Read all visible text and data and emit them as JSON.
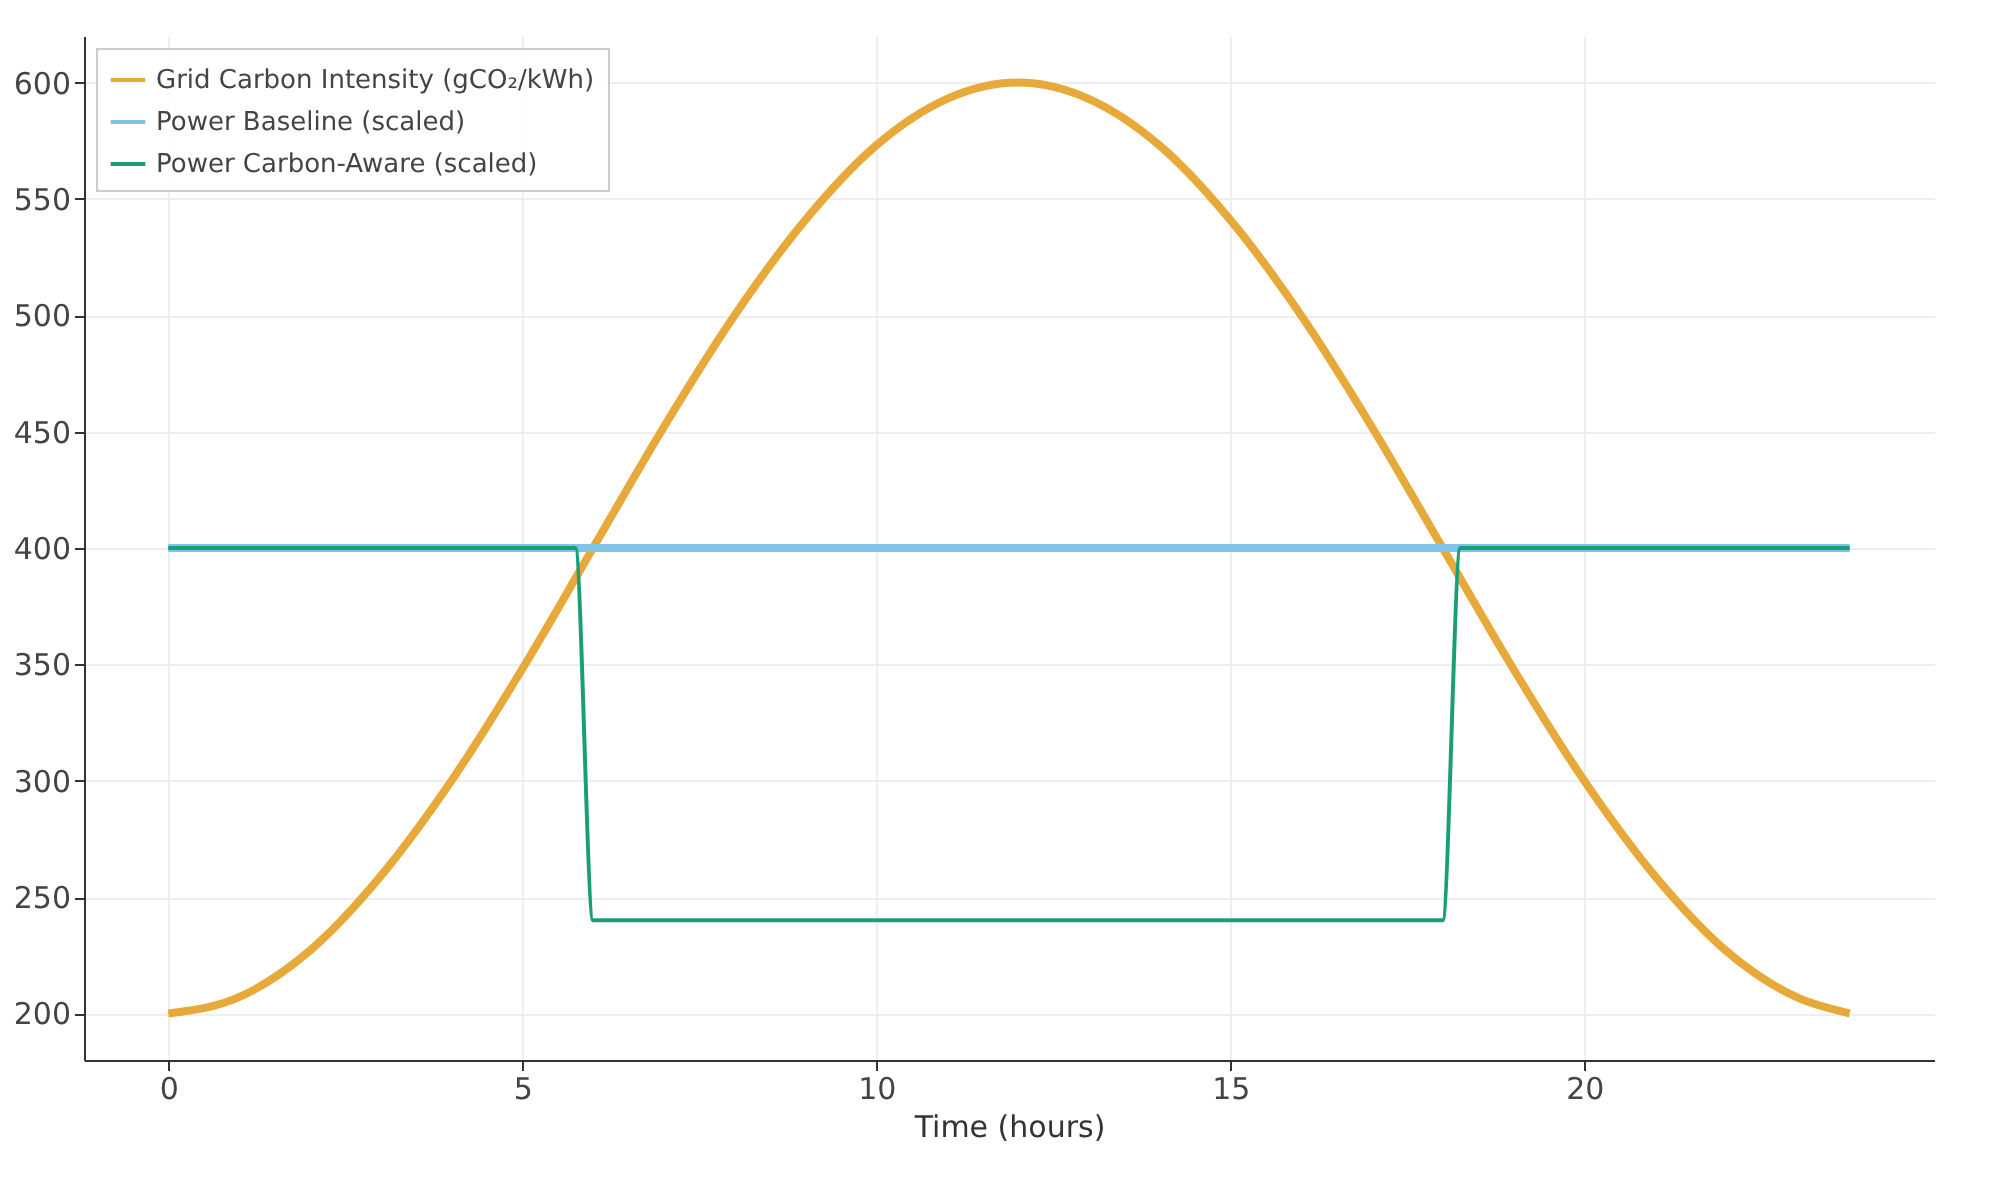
{
  "chart_data": {
    "type": "line",
    "xlabel": "Time (hours)",
    "xlim": [
      -1.19,
      24.94
    ],
    "ylim": [
      180,
      620
    ],
    "xticks": [
      0,
      5,
      10,
      15,
      20
    ],
    "yticks": [
      200,
      250,
      300,
      350,
      400,
      450,
      500,
      550,
      600
    ],
    "grid": true,
    "legend": "top left",
    "series": [
      {
        "name": "Grid Carbon Intensity (gCO₂/kWh)",
        "color": "#e6a93a",
        "x": [
          0,
          1,
          2,
          3,
          4,
          5,
          6,
          7,
          8,
          9,
          10,
          11,
          12,
          13,
          14,
          15,
          16,
          17,
          18,
          19,
          20,
          21,
          22,
          23,
          23.75
        ],
        "values": [
          200,
          207,
          227,
          259,
          300,
          348,
          400,
          452,
          500,
          541,
          573,
          593,
          600,
          593,
          573,
          541,
          500,
          452,
          400,
          348,
          300,
          259,
          227,
          207,
          200
        ]
      },
      {
        "name": "Power Baseline (scaled)",
        "color": "#7fc4e8",
        "x": [
          0,
          23.75
        ],
        "values": [
          400,
          400
        ]
      },
      {
        "name": "Power Carbon-Aware (scaled)",
        "color": "#1a9e77",
        "x": [
          0,
          5.75,
          6,
          18,
          18.25,
          23.75
        ],
        "values": [
          400,
          400,
          240,
          240,
          400,
          400
        ]
      }
    ]
  }
}
